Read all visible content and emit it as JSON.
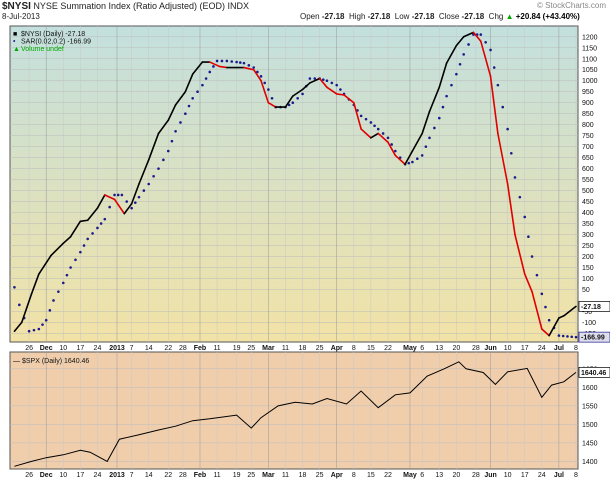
{
  "header": {
    "symbol": "$NYSI",
    "description": "NYSE Summation Index (Ratio Adjusted) (EOD)",
    "exchange": "INDX",
    "date": "8-Jul-2013",
    "watermark": "© StockCharts.com",
    "open_label": "Open",
    "open": "-27.18",
    "high_label": "High",
    "high": "-27.18",
    "low_label": "Low",
    "low": "-27.18",
    "close_label": "Close",
    "close": "-27.18",
    "chg_label": "Chg",
    "chg": "+20.84 (+43.40%)",
    "chg_arrow": "▲"
  },
  "colors": {
    "nysi_up": "#000000",
    "nysi_down": "#e00000",
    "sar": "#1a1a8c",
    "spx": "#000000",
    "volume_legend": "#00aa00",
    "panel1_top": "#c3e0de",
    "panel1_bottom": "#f2e2a6",
    "panel2": "#f0ceac"
  },
  "chart_data": [
    {
      "type": "line",
      "title": "$NYSI (Daily) -27.18",
      "ylim": [
        -180,
        1240
      ],
      "y_ticks": [
        -150,
        -100,
        -50,
        50,
        100,
        150,
        200,
        250,
        300,
        350,
        400,
        450,
        500,
        550,
        600,
        650,
        700,
        750,
        800,
        850,
        900,
        950,
        1000,
        1050,
        1100,
        1150,
        1200
      ],
      "last_value_label": "-27.18",
      "sar_value_label": "-166.99",
      "legend": [
        {
          "name": "$NYSI (Daily) -27.18",
          "swatch": "■"
        },
        {
          "name": "SAR(0.02,0.2) -166.99",
          "swatch": "•"
        },
        {
          "name": "Volume undef",
          "swatch": "▲"
        }
      ],
      "series": [
        {
          "name": "$NYSI (Daily)",
          "points": [
            {
              "x": "Nov 20",
              "y": -140
            },
            {
              "x": "Nov 23",
              "y": -100
            },
            {
              "x": "Nov 27",
              "y": 30
            },
            {
              "x": "Nov 30",
              "y": 120
            },
            {
              "x": "Dec 5",
              "y": 205
            },
            {
              "x": "Dec 10",
              "y": 260
            },
            {
              "x": "Dec 13",
              "y": 290
            },
            {
              "x": "Dec 17",
              "y": 360
            },
            {
              "x": "Dec 20",
              "y": 365
            },
            {
              "x": "Dec 24",
              "y": 420
            },
            {
              "x": "Dec 27",
              "y": 480
            },
            {
              "x": "Dec 31",
              "y": 460
            },
            {
              "x": "Jan 4",
              "y": 395
            },
            {
              "x": "Jan 7",
              "y": 440
            },
            {
              "x": "Jan 10",
              "y": 530
            },
            {
              "x": "Jan 14",
              "y": 640
            },
            {
              "x": "Jan 18",
              "y": 760
            },
            {
              "x": "Jan 22",
              "y": 820
            },
            {
              "x": "Jan 25",
              "y": 890
            },
            {
              "x": "Jan 29",
              "y": 950
            },
            {
              "x": "Feb 1",
              "y": 1030
            },
            {
              "x": "Feb 5",
              "y": 1085
            },
            {
              "x": "Feb 8",
              "y": 1085
            },
            {
              "x": "Feb 12",
              "y": 1065
            },
            {
              "x": "Feb 15",
              "y": 1060
            },
            {
              "x": "Feb 19",
              "y": 1060
            },
            {
              "x": "Feb 22",
              "y": 1060
            },
            {
              "x": "Feb 26",
              "y": 1050
            },
            {
              "x": "Mar 1",
              "y": 1000
            },
            {
              "x": "Mar 4",
              "y": 900
            },
            {
              "x": "Mar 7",
              "y": 880
            },
            {
              "x": "Mar 11",
              "y": 880
            },
            {
              "x": "Mar 14",
              "y": 930
            },
            {
              "x": "Mar 18",
              "y": 960
            },
            {
              "x": "Mar 21",
              "y": 990
            },
            {
              "x": "Mar 25",
              "y": 1010
            },
            {
              "x": "Mar 28",
              "y": 970
            },
            {
              "x": "Apr 1",
              "y": 940
            },
            {
              "x": "Apr 4",
              "y": 935
            },
            {
              "x": "Apr 8",
              "y": 900
            },
            {
              "x": "Apr 11",
              "y": 780
            },
            {
              "x": "Apr 15",
              "y": 740
            },
            {
              "x": "Apr 18",
              "y": 760
            },
            {
              "x": "Apr 22",
              "y": 720
            },
            {
              "x": "Apr 25",
              "y": 660
            },
            {
              "x": "Apr 29",
              "y": 620
            },
            {
              "x": "May 2",
              "y": 680
            },
            {
              "x": "May 6",
              "y": 760
            },
            {
              "x": "May 9",
              "y": 860
            },
            {
              "x": "May 13",
              "y": 970
            },
            {
              "x": "May 16",
              "y": 1080
            },
            {
              "x": "May 20",
              "y": 1160
            },
            {
              "x": "May 23",
              "y": 1200
            },
            {
              "x": "May 27",
              "y": 1220
            },
            {
              "x": "May 30",
              "y": 1180
            },
            {
              "x": "Jun 3",
              "y": 1020
            },
            {
              "x": "Jun 6",
              "y": 760
            },
            {
              "x": "Jun 10",
              "y": 530
            },
            {
              "x": "Jun 13",
              "y": 300
            },
            {
              "x": "Jun 17",
              "y": 120
            },
            {
              "x": "Jun 20",
              "y": 40
            },
            {
              "x": "Jun 24",
              "y": -130
            },
            {
              "x": "Jun 27",
              "y": -160
            },
            {
              "x": "Jul 1",
              "y": -80
            },
            {
              "x": "Jul 3",
              "y": -70
            },
            {
              "x": "Jul 8",
              "y": -27.18
            }
          ]
        },
        {
          "name": "SAR(0.02,0.2)",
          "points": [
            {
              "x": "Nov 20",
              "y": 60
            },
            {
              "x": "Nov 22",
              "y": -20
            },
            {
              "x": "Nov 26",
              "y": -140
            },
            {
              "x": "Nov 30",
              "y": -130
            },
            {
              "x": "Dec 3",
              "y": -90
            },
            {
              "x": "Dec 6",
              "y": 0
            },
            {
              "x": "Dec 10",
              "y": 80
            },
            {
              "x": "Dec 13",
              "y": 150
            },
            {
              "x": "Dec 17",
              "y": 220
            },
            {
              "x": "Dec 20",
              "y": 280
            },
            {
              "x": "Dec 24",
              "y": 330
            },
            {
              "x": "Dec 27",
              "y": 370
            },
            {
              "x": "Dec 31",
              "y": 480
            },
            {
              "x": "Jan 3",
              "y": 480
            },
            {
              "x": "Jan 7",
              "y": 420
            },
            {
              "x": "Jan 10",
              "y": 470
            },
            {
              "x": "Jan 14",
              "y": 530
            },
            {
              "x": "Jan 18",
              "y": 600
            },
            {
              "x": "Jan 22",
              "y": 680
            },
            {
              "x": "Jan 25",
              "y": 770
            },
            {
              "x": "Jan 29",
              "y": 850
            },
            {
              "x": "Feb 1",
              "y": 920
            },
            {
              "x": "Feb 5",
              "y": 980
            },
            {
              "x": "Feb 8",
              "y": 1040
            },
            {
              "x": "Feb 11",
              "y": 1090
            },
            {
              "x": "Feb 15",
              "y": 1090
            },
            {
              "x": "Feb 19",
              "y": 1085
            },
            {
              "x": "Feb 22",
              "y": 1080
            },
            {
              "x": "Feb 26",
              "y": 1060
            },
            {
              "x": "Mar 1",
              "y": 1020
            },
            {
              "x": "Mar 4",
              "y": 960
            },
            {
              "x": "Mar 7",
              "y": 880
            },
            {
              "x": "Mar 11",
              "y": 880
            },
            {
              "x": "Mar 14",
              "y": 900
            },
            {
              "x": "Mar 18",
              "y": 940
            },
            {
              "x": "Mar 21",
              "y": 1010
            },
            {
              "x": "Mar 25",
              "y": 1010
            },
            {
              "x": "Mar 28",
              "y": 1000
            },
            {
              "x": "Apr 1",
              "y": 980
            },
            {
              "x": "Apr 4",
              "y": 940
            },
            {
              "x": "Apr 8",
              "y": 890
            },
            {
              "x": "Apr 11",
              "y": 840
            },
            {
              "x": "Apr 15",
              "y": 810
            },
            {
              "x": "Apr 18",
              "y": 780
            },
            {
              "x": "Apr 22",
              "y": 740
            },
            {
              "x": "Apr 25",
              "y": 680
            },
            {
              "x": "Apr 29",
              "y": 620
            },
            {
              "x": "May 2",
              "y": 630
            },
            {
              "x": "May 6",
              "y": 660
            },
            {
              "x": "May 9",
              "y": 740
            },
            {
              "x": "May 13",
              "y": 830
            },
            {
              "x": "May 16",
              "y": 930
            },
            {
              "x": "May 20",
              "y": 1030
            },
            {
              "x": "May 23",
              "y": 1120
            },
            {
              "x": "May 27",
              "y": 1210
            },
            {
              "x": "May 30",
              "y": 1210
            },
            {
              "x": "Jun 3",
              "y": 1140
            },
            {
              "x": "Jun 6",
              "y": 980
            },
            {
              "x": "Jun 10",
              "y": 780
            },
            {
              "x": "Jun 13",
              "y": 560
            },
            {
              "x": "Jun 17",
              "y": 380
            },
            {
              "x": "Jun 20",
              "y": 200
            },
            {
              "x": "Jun 24",
              "y": 30
            },
            {
              "x": "Jun 27",
              "y": -90
            },
            {
              "x": "Jul 1",
              "y": -160
            },
            {
              "x": "Jul 8",
              "y": -166.99
            }
          ]
        }
      ]
    },
    {
      "type": "line",
      "title": "$SPX (Daily) 1640.46",
      "ylim": [
        1385,
        1690
      ],
      "y_ticks": [
        1400,
        1450,
        1500,
        1550,
        1600,
        1650
      ],
      "last_value_label": "1640.46",
      "series": [
        {
          "name": "$SPX (Daily)",
          "points": [
            {
              "x": "Nov 20",
              "y": 1387
            },
            {
              "x": "Nov 27",
              "y": 1400
            },
            {
              "x": "Dec 3",
              "y": 1410
            },
            {
              "x": "Dec 10",
              "y": 1418
            },
            {
              "x": "Dec 17",
              "y": 1430
            },
            {
              "x": "Dec 21",
              "y": 1425
            },
            {
              "x": "Dec 28",
              "y": 1400
            },
            {
              "x": "Jan 2",
              "y": 1460
            },
            {
              "x": "Jan 10",
              "y": 1472
            },
            {
              "x": "Jan 18",
              "y": 1485
            },
            {
              "x": "Jan 25",
              "y": 1495
            },
            {
              "x": "Feb 1",
              "y": 1510
            },
            {
              "x": "Feb 8",
              "y": 1515
            },
            {
              "x": "Feb 19",
              "y": 1525
            },
            {
              "x": "Feb 25",
              "y": 1490
            },
            {
              "x": "Mar 1",
              "y": 1518
            },
            {
              "x": "Mar 8",
              "y": 1550
            },
            {
              "x": "Mar 15",
              "y": 1560
            },
            {
              "x": "Mar 22",
              "y": 1555
            },
            {
              "x": "Mar 28",
              "y": 1570
            },
            {
              "x": "Apr 5",
              "y": 1555
            },
            {
              "x": "Apr 11",
              "y": 1590
            },
            {
              "x": "Apr 18",
              "y": 1545
            },
            {
              "x": "Apr 25",
              "y": 1580
            },
            {
              "x": "May 1",
              "y": 1585
            },
            {
              "x": "May 8",
              "y": 1630
            },
            {
              "x": "May 15",
              "y": 1650
            },
            {
              "x": "May 21",
              "y": 1669
            },
            {
              "x": "May 24",
              "y": 1650
            },
            {
              "x": "May 31",
              "y": 1640
            },
            {
              "x": "Jun 5",
              "y": 1608
            },
            {
              "x": "Jun 10",
              "y": 1642
            },
            {
              "x": "Jun 18",
              "y": 1651
            },
            {
              "x": "Jun 24",
              "y": 1573
            },
            {
              "x": "Jun 28",
              "y": 1606
            },
            {
              "x": "Jul 3",
              "y": 1615
            },
            {
              "x": "Jul 8",
              "y": 1640.46
            }
          ]
        }
      ]
    }
  ],
  "x_axis": {
    "ticks": [
      {
        "label": "26",
        "x": "Nov 26"
      },
      {
        "label": "Dec",
        "x": "Dec 3",
        "month": true
      },
      {
        "label": "10",
        "x": "Dec 10"
      },
      {
        "label": "17",
        "x": "Dec 17"
      },
      {
        "label": "24",
        "x": "Dec 24"
      },
      {
        "label": "2013",
        "x": "Jan 1",
        "month": true
      },
      {
        "label": "7",
        "x": "Jan 7"
      },
      {
        "label": "14",
        "x": "Jan 14"
      },
      {
        "label": "22",
        "x": "Jan 22"
      },
      {
        "label": "28",
        "x": "Jan 28"
      },
      {
        "label": "Feb",
        "x": "Feb 4",
        "month": true
      },
      {
        "label": "11",
        "x": "Feb 11"
      },
      {
        "label": "19",
        "x": "Feb 19"
      },
      {
        "label": "25",
        "x": "Feb 25"
      },
      {
        "label": "Mar",
        "x": "Mar 4",
        "month": true
      },
      {
        "label": "11",
        "x": "Mar 11"
      },
      {
        "label": "18",
        "x": "Mar 18"
      },
      {
        "label": "25",
        "x": "Mar 25"
      },
      {
        "label": "Apr",
        "x": "Apr 1",
        "month": true
      },
      {
        "label": "8",
        "x": "Apr 8"
      },
      {
        "label": "15",
        "x": "Apr 15"
      },
      {
        "label": "22",
        "x": "Apr 22"
      },
      {
        "label": "May",
        "x": "May 1",
        "month": true
      },
      {
        "label": "6",
        "x": "May 6"
      },
      {
        "label": "13",
        "x": "May 13"
      },
      {
        "label": "20",
        "x": "May 20"
      },
      {
        "label": "28",
        "x": "May 28"
      },
      {
        "label": "Jun",
        "x": "Jun 3",
        "month": true
      },
      {
        "label": "10",
        "x": "Jun 10"
      },
      {
        "label": "17",
        "x": "Jun 17"
      },
      {
        "label": "24",
        "x": "Jun 24"
      },
      {
        "label": "Jul",
        "x": "Jul 1",
        "month": true
      },
      {
        "label": "8",
        "x": "Jul 8"
      }
    ]
  }
}
